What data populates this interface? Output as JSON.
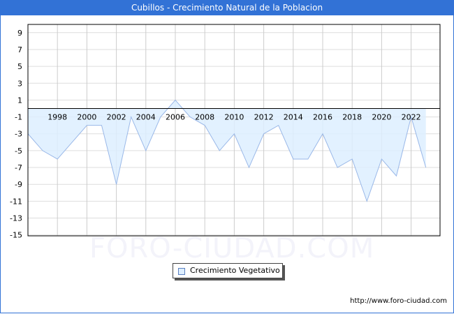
{
  "header": {
    "title": "Cubillos - Crecimiento Natural de la Poblacion"
  },
  "watermark": "FORO-CIUDAD.COM",
  "footer": {
    "url": "http://www.foro-ciudad.com"
  },
  "legend": {
    "items": [
      {
        "label": "Crecimiento Vegetativo",
        "color": "#ddeeff"
      }
    ]
  },
  "colors": {
    "title_bg": "#3272d6",
    "fill": "#ddeeff",
    "line": "#9ab8e8",
    "grid": "#dddddd"
  },
  "chart_data": {
    "type": "area",
    "title": "Cubillos - Crecimiento Natural de la Poblacion",
    "xlabel": "",
    "ylabel": "",
    "x": [
      1996,
      1997,
      1998,
      1999,
      2000,
      2001,
      2002,
      2003,
      2004,
      2005,
      2006,
      2007,
      2008,
      2009,
      2010,
      2011,
      2012,
      2013,
      2014,
      2015,
      2016,
      2017,
      2018,
      2019,
      2020,
      2021,
      2022,
      2023
    ],
    "series": [
      {
        "name": "Crecimiento Vegetativo",
        "values": [
          -3,
          -5,
          -6,
          -4,
          -2,
          -2,
          -9,
          -1,
          -5,
          -1,
          1,
          -1,
          -2,
          -5,
          -3,
          -7,
          -3,
          -2,
          -6,
          -6,
          -3,
          -7,
          -6,
          -11,
          -6,
          -8,
          -1,
          -7
        ]
      }
    ],
    "x_tick_labels": [
      "1998",
      "2000",
      "2002",
      "2004",
      "2006",
      "2008",
      "2010",
      "2012",
      "2014",
      "2016",
      "2018",
      "2020",
      "2022"
    ],
    "y_tick_labels": [
      "9",
      "7",
      "5",
      "3",
      "1",
      "-1",
      "-3",
      "-5",
      "-7",
      "-9",
      "-11",
      "-13",
      "-15"
    ],
    "ylim": [
      -15,
      10
    ],
    "grid": true,
    "legend_position": "bottom"
  }
}
